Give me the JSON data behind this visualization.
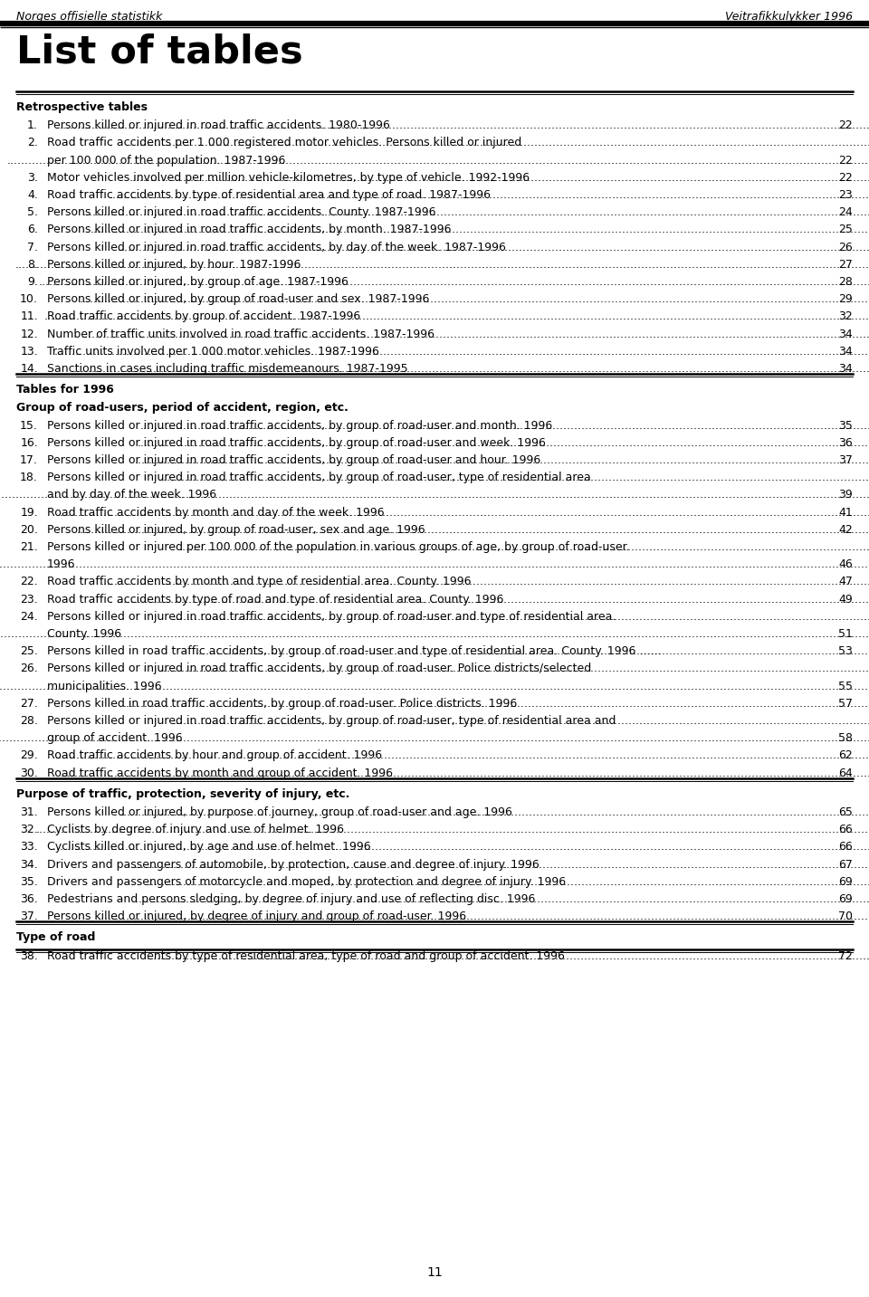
{
  "header_left": "Norges offisielle statistikk",
  "header_right": "Veitrafikkulykker 1996",
  "title": "List of tables",
  "page_number": "11",
  "entries": [
    {
      "type": "section_line"
    },
    {
      "type": "section_header",
      "text": "Retrospective tables"
    },
    {
      "type": "entry1",
      "num": "1.",
      "text": "Persons killed or injured in road traffic accidents. 1980-1996",
      "page": "22"
    },
    {
      "type": "entry2",
      "num": "2.",
      "lines": [
        "Road traffic accidents per 1 000 registered motor vehicles. Persons killed or injured",
        "per 100 000 of the population. 1987-1996"
      ],
      "page": "22"
    },
    {
      "type": "entry1",
      "num": "3.",
      "text": "Motor vehicles involved per million vehicle-kilometres, by type of vehicle. 1992-1996",
      "page": "22"
    },
    {
      "type": "entry1",
      "num": "4.",
      "text": "Road traffic accidents by type of residential area and type of road. 1987-1996",
      "page": "23"
    },
    {
      "type": "entry1",
      "num": "5.",
      "text": "Persons killed or injured in road traffic accidents. County. 1987-1996",
      "page": "24"
    },
    {
      "type": "entry1",
      "num": "6.",
      "text": "Persons killed or injured in road traffic accidents, by month. 1987-1996",
      "page": "25"
    },
    {
      "type": "entry1",
      "num": "7.",
      "text": "Persons killed or injured in road traffic accidents, by day of the week. 1987-1996",
      "page": "26"
    },
    {
      "type": "entry1",
      "num": "8.",
      "text": "Persons killed or injured, by hour. 1987-1996",
      "page": "27"
    },
    {
      "type": "entry1",
      "num": "9.",
      "text": "Persons killed or injured, by group of age. 1987-1996",
      "page": "28"
    },
    {
      "type": "entry1",
      "num": "10.",
      "text": "Persons killed or injured, by group of road-user and sex. 1987-1996",
      "page": "29"
    },
    {
      "type": "entry1",
      "num": "11.",
      "text": "Road traffic accidents by group of accident. 1987-1996",
      "page": "32"
    },
    {
      "type": "entry1",
      "num": "12.",
      "text": "Number of traffic units involved in road traffic accidents. 1987-1996",
      "page": "34"
    },
    {
      "type": "entry1",
      "num": "13.",
      "text": "Traffic units involved per 1 000 motor vehicles. 1987-1996",
      "page": "34"
    },
    {
      "type": "entry1",
      "num": "14.",
      "text": "Sanctions in cases including traffic misdemeanours. 1987-1995 ",
      "page": "34"
    },
    {
      "type": "section_line"
    },
    {
      "type": "section_header",
      "text": "Tables for 1996"
    },
    {
      "type": "subsection_header",
      "text": "Group of road-users, period of accident, region, etc."
    },
    {
      "type": "entry1",
      "num": "15.",
      "text": "Persons killed or injured in road traffic accidents, by group of road-user and month. 1996",
      "page": "35"
    },
    {
      "type": "entry1",
      "num": "16.",
      "text": "Persons killed or injured in road traffic accidents, by group of road-user and week. 1996",
      "page": "36"
    },
    {
      "type": "entry1",
      "num": "17.",
      "text": "Persons killed or injured in road traffic accidents, by group of road-user and hour. 1996",
      "page": "37"
    },
    {
      "type": "entry2",
      "num": "18.",
      "lines": [
        "Persons killed or injured in road traffic accidents, by group of road-user, type of residential area",
        "and by day of the week. 1996"
      ],
      "page": "39"
    },
    {
      "type": "entry1",
      "num": "19.",
      "text": "Road traffic accidents by month and day of the week. 1996",
      "page": "41"
    },
    {
      "type": "entry1",
      "num": "20.",
      "text": "Persons killed or injured, by group of road-user, sex and age. 1996",
      "page": "42"
    },
    {
      "type": "entry2",
      "num": "21.",
      "lines": [
        "Persons killed or injured per 100 000 of the population in various groups of age, by group of road-user.",
        "1996"
      ],
      "page": "46"
    },
    {
      "type": "entry1",
      "num": "22.",
      "text": "Road traffic accidents by month and type of residential area. County. 1996",
      "page": "47"
    },
    {
      "type": "entry1",
      "num": "23.",
      "text": "Road traffic accidents by type of road and type of residential area. County. 1996",
      "page": "49"
    },
    {
      "type": "entry2",
      "num": "24.",
      "lines": [
        "Persons killed or injured in road traffic accidents, by group of road-user and type of residential area.",
        "County. 1996"
      ],
      "page": "51"
    },
    {
      "type": "entry1",
      "num": "25.",
      "text": "Persons killed in road traffic accidents, by group of road-user and type of residential area. County. 1996 ......",
      "page": "53"
    },
    {
      "type": "entry2",
      "num": "26.",
      "lines": [
        "Persons killed or injured in road traffic accidents, by group of road-user. Police districts/selected",
        "municipalities. 1996"
      ],
      "page": "55"
    },
    {
      "type": "entry1",
      "num": "27.",
      "text": "Persons killed in road traffic accidents, by group of road-user. Police districts. 1996",
      "page": "57"
    },
    {
      "type": "entry2",
      "num": "28.",
      "lines": [
        "Persons killed or injured in road traffic accidents, by group of road-user, type of residential area and",
        "group of accident. 1996"
      ],
      "page": "58"
    },
    {
      "type": "entry1",
      "num": "29.",
      "text": "Road traffic accidents by hour and group of accident. 1996",
      "page": "62"
    },
    {
      "type": "entry1",
      "num": "30.",
      "text": "Road traffic accidents by month and group of accident. 1996",
      "page": "64"
    },
    {
      "type": "section_line"
    },
    {
      "type": "section_header",
      "text": "Purpose of traffic, protection, severity of injury, etc."
    },
    {
      "type": "entry1",
      "num": "31.",
      "text": "Persons killed or injured, by purpose of journey, group of road-user and age. 1996",
      "page": "65"
    },
    {
      "type": "entry1",
      "num": "32.",
      "text": "Cyclists by degree of injury and use of helmet. 1996",
      "page": "66"
    },
    {
      "type": "entry1",
      "num": "33.",
      "text": "Cyclists killed or injured, by age and use of helmet. 1996",
      "page": "66"
    },
    {
      "type": "entry1",
      "num": "34.",
      "text": "Drivers and passengers of automobile, by protection, cause and degree of injury. 1996",
      "page": "67"
    },
    {
      "type": "entry1",
      "num": "35.",
      "text": "Drivers and passengers of motorcycle and moped, by protection and degree of injury. 1996",
      "page": "69"
    },
    {
      "type": "entry1",
      "num": "36.",
      "text": "Pedestrians and persons sledging, by degree of injury and use of reflecting disc. 1996",
      "page": "69"
    },
    {
      "type": "entry1",
      "num": "37.",
      "text": "Persons killed or injured, by degree of injury and group of road-user. 1996",
      "page": "70"
    },
    {
      "type": "section_line"
    },
    {
      "type": "section_header",
      "text": "Type of road"
    },
    {
      "type": "entry1",
      "num": "38.",
      "text": "Road traffic accidents by type of residential area, type of road and group of accident. 1996",
      "page": "72"
    },
    {
      "type": "bottom_line"
    }
  ]
}
